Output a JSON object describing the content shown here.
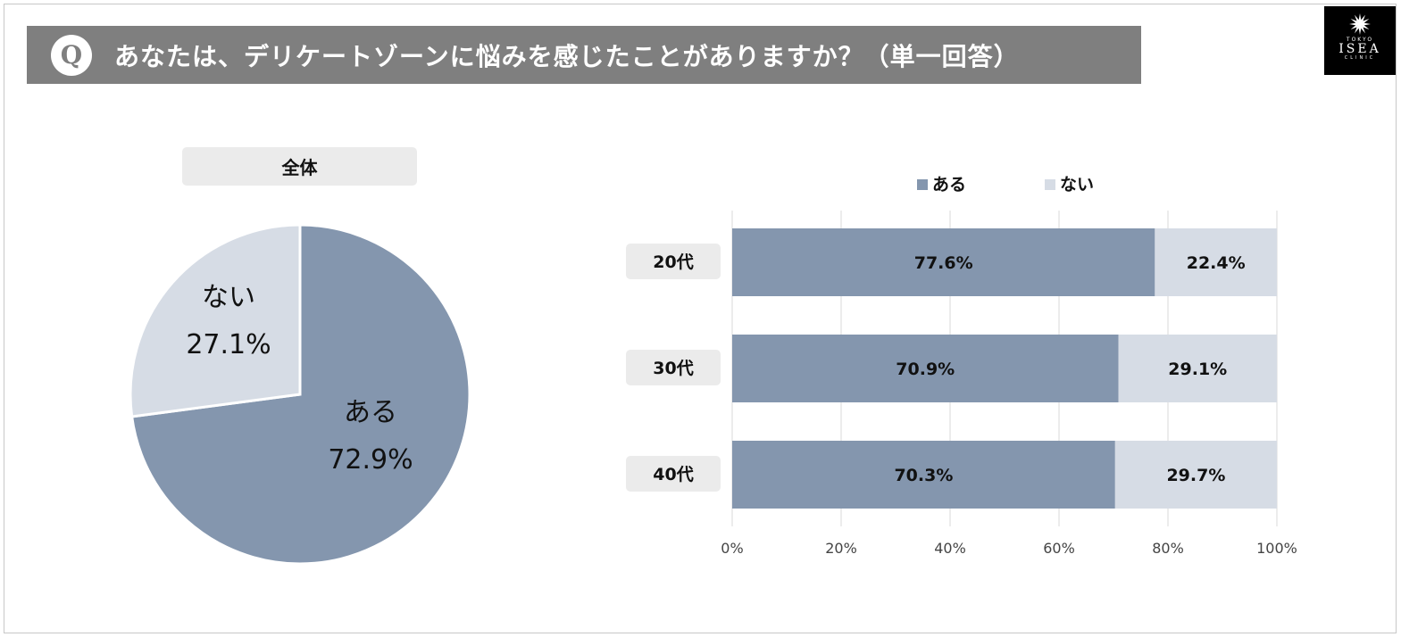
{
  "header": {
    "q_icon": "Q",
    "question": "あなたは、デリケートゾーンに悩みを感じたことがありますか？（単一回答）"
  },
  "logo": {
    "icon": "sunburst-icon",
    "top_text": "TOKYO",
    "name": "ISEA",
    "bottom_text": "CLINIC"
  },
  "colors": {
    "aru": "#8496ae",
    "nai": "#d6dce5",
    "header_bg": "#7f7f7f",
    "pill_bg": "#ebebeb"
  },
  "chart_data": [
    {
      "type": "pie",
      "title": "全体",
      "slices": [
        {
          "label": "ある",
          "value": 72.9,
          "display": "72.9%"
        },
        {
          "label": "ない",
          "value": 27.1,
          "display": "27.1%"
        }
      ]
    },
    {
      "type": "bar",
      "orientation": "horizontal",
      "stacked": true,
      "legend": {
        "position": "top",
        "entries": [
          "ある",
          "ない"
        ]
      },
      "categories": [
        "20代",
        "30代",
        "40代"
      ],
      "series": [
        {
          "name": "ある",
          "values": [
            77.6,
            70.9,
            70.3
          ],
          "labels": [
            "77.6%",
            "70.9%",
            "70.3%"
          ]
        },
        {
          "name": "ない",
          "values": [
            22.4,
            29.1,
            29.7
          ],
          "labels": [
            "22.4%",
            "29.1%",
            "29.7%"
          ]
        }
      ],
      "xlim": [
        0,
        100
      ],
      "xticks": [
        "0%",
        "20%",
        "40%",
        "60%",
        "80%",
        "100%"
      ],
      "grid": true
    }
  ]
}
